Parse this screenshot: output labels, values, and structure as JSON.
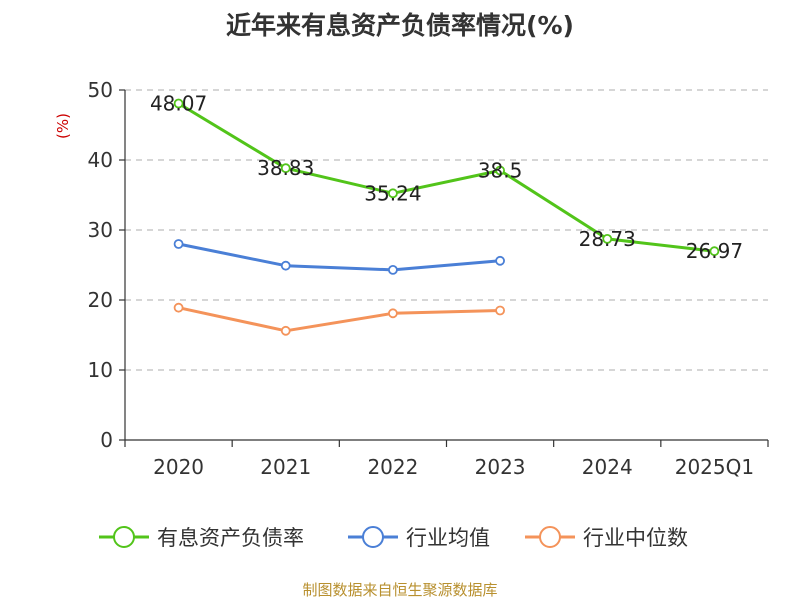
{
  "chart_data": {
    "type": "line",
    "title": "近年来有息资产负债率情况(%)",
    "ylabel": "(%)",
    "ylim": [
      0,
      50
    ],
    "yticks": [
      0,
      10,
      20,
      30,
      40,
      50
    ],
    "grid": true,
    "legend_position": "bottom",
    "categories": [
      "2020",
      "2021",
      "2022",
      "2023",
      "2024",
      "2025Q1"
    ],
    "series": [
      {
        "name": "有息资产负债率",
        "color": "#52c41a",
        "values": [
          48.07,
          38.83,
          35.24,
          38.5,
          28.73,
          26.97
        ],
        "labels": [
          "48.07",
          "38.83",
          "35.24",
          "38.5",
          "28.73",
          "26.97"
        ]
      },
      {
        "name": "行业均值",
        "color": "#4a7fd6",
        "values": [
          28.0,
          24.9,
          24.3,
          25.6,
          null,
          null
        ]
      },
      {
        "name": "行业中位数",
        "color": "#f4935a",
        "values": [
          18.9,
          15.6,
          18.1,
          18.5,
          null,
          null
        ]
      }
    ],
    "ylabel_color": "#cc0000"
  },
  "source": "制图数据来自恒生聚源数据库"
}
